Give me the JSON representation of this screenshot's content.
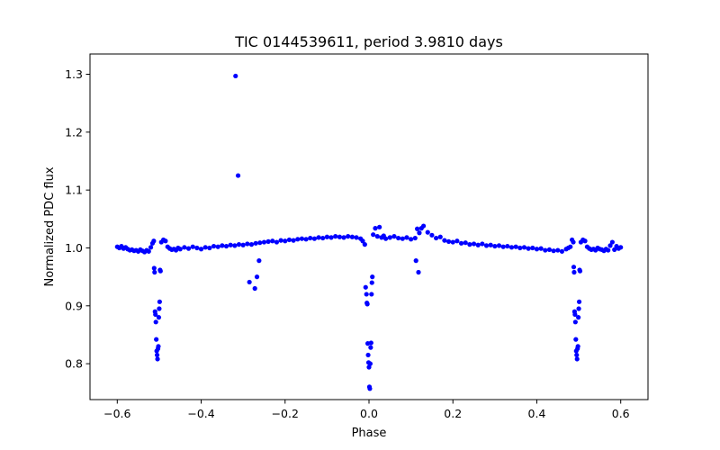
{
  "chart_data": {
    "type": "scatter",
    "title": "TIC 0144539611, period 3.9810 days",
    "xlabel": "Phase",
    "ylabel": "Normalized PDC flux",
    "xlim": [
      -0.665,
      0.665
    ],
    "ylim": [
      0.738,
      1.335
    ],
    "xticks": [
      -0.6,
      -0.4,
      -0.2,
      0.0,
      0.2,
      0.4,
      0.6
    ],
    "xtick_labels": [
      "−0.6",
      "−0.4",
      "−0.2",
      "0.0",
      "0.2",
      "0.4",
      "0.6"
    ],
    "yticks": [
      0.8,
      0.9,
      1.0,
      1.1,
      1.2,
      1.3
    ],
    "ytick_labels": [
      "0.8",
      "0.9",
      "1.0",
      "1.1",
      "1.2",
      "1.3"
    ],
    "grid": false,
    "marker_color": "#0000ff",
    "series": [
      {
        "points": [
          [
            -0.6,
            1.002
          ],
          [
            -0.595,
            1.0
          ],
          [
            -0.59,
            1.003
          ],
          [
            -0.585,
            0.999
          ],
          [
            -0.58,
            1.001
          ],
          [
            -0.575,
            0.998
          ],
          [
            -0.57,
            0.996
          ],
          [
            -0.565,
            0.997
          ],
          [
            -0.56,
            0.995
          ],
          [
            -0.555,
            0.996
          ],
          [
            -0.55,
            0.994
          ],
          [
            -0.545,
            0.997
          ],
          [
            -0.54,
            0.995
          ],
          [
            -0.535,
            0.993
          ],
          [
            -0.53,
            0.996
          ],
          [
            -0.525,
            0.994
          ],
          [
            -0.52,
            1.001
          ],
          [
            -0.516,
            1.008
          ],
          [
            -0.513,
            1.012
          ],
          [
            -0.512,
            0.965
          ],
          [
            -0.511,
            0.958
          ],
          [
            -0.51,
            0.89
          ],
          [
            -0.509,
            0.885
          ],
          [
            -0.508,
            0.872
          ],
          [
            -0.507,
            0.842
          ],
          [
            -0.506,
            0.822
          ],
          [
            -0.505,
            0.815
          ],
          [
            -0.504,
            0.808
          ],
          [
            -0.503,
            0.826
          ],
          [
            -0.502,
            0.83
          ],
          [
            -0.501,
            0.88
          ],
          [
            -0.5,
            0.895
          ],
          [
            -0.499,
            0.907
          ],
          [
            -0.498,
            0.962
          ],
          [
            -0.497,
            0.96
          ],
          [
            -0.495,
            1.01
          ],
          [
            -0.49,
            1.014
          ],
          [
            -0.485,
            1.012
          ],
          [
            -0.48,
            1.002
          ],
          [
            -0.475,
            0.999
          ],
          [
            -0.47,
            0.997
          ],
          [
            -0.465,
            0.998
          ],
          [
            -0.46,
            0.996
          ],
          [
            -0.455,
            1.0
          ],
          [
            -0.45,
            0.998
          ],
          [
            -0.44,
            1.001
          ],
          [
            -0.43,
            0.999
          ],
          [
            -0.42,
            1.002
          ],
          [
            -0.41,
            1.0
          ],
          [
            -0.4,
            0.998
          ],
          [
            -0.39,
            1.001
          ],
          [
            -0.38,
            1.0
          ],
          [
            -0.37,
            1.003
          ],
          [
            -0.36,
            1.002
          ],
          [
            -0.35,
            1.004
          ],
          [
            -0.34,
            1.003
          ],
          [
            -0.33,
            1.005
          ],
          [
            -0.32,
            1.004
          ],
          [
            -0.31,
            1.006
          ],
          [
            -0.3,
            1.005
          ],
          [
            -0.29,
            1.007
          ],
          [
            -0.28,
            1.006
          ],
          [
            -0.27,
            1.008
          ],
          [
            -0.26,
            1.009
          ],
          [
            -0.25,
            1.01
          ],
          [
            -0.24,
            1.011
          ],
          [
            -0.23,
            1.012
          ],
          [
            -0.22,
            1.01
          ],
          [
            -0.21,
            1.013
          ],
          [
            -0.2,
            1.012
          ],
          [
            -0.19,
            1.014
          ],
          [
            -0.18,
            1.013
          ],
          [
            -0.17,
            1.015
          ],
          [
            -0.16,
            1.016
          ],
          [
            -0.15,
            1.015
          ],
          [
            -0.14,
            1.017
          ],
          [
            -0.13,
            1.016
          ],
          [
            -0.12,
            1.018
          ],
          [
            -0.11,
            1.017
          ],
          [
            -0.1,
            1.019
          ],
          [
            -0.09,
            1.018
          ],
          [
            -0.08,
            1.02
          ],
          [
            -0.07,
            1.019
          ],
          [
            -0.06,
            1.018
          ],
          [
            -0.05,
            1.02
          ],
          [
            -0.04,
            1.019
          ],
          [
            -0.03,
            1.018
          ],
          [
            -0.02,
            1.016
          ],
          [
            -0.015,
            1.012
          ],
          [
            -0.01,
            1.006
          ],
          [
            -0.318,
            1.297
          ],
          [
            -0.312,
            1.125
          ],
          [
            -0.285,
            0.941
          ],
          [
            -0.272,
            0.93
          ],
          [
            -0.267,
            0.95
          ],
          [
            -0.262,
            0.978
          ],
          [
            -0.008,
            0.932
          ],
          [
            -0.006,
            0.92
          ],
          [
            -0.005,
            0.905
          ],
          [
            -0.004,
            0.903
          ],
          [
            -0.003,
            0.835
          ],
          [
            -0.002,
            0.815
          ],
          [
            -0.001,
            0.802
          ],
          [
            0.0,
            0.794
          ],
          [
            0.001,
            0.76
          ],
          [
            0.002,
            0.757
          ],
          [
            0.003,
            0.8
          ],
          [
            0.004,
            0.828
          ],
          [
            0.005,
            0.836
          ],
          [
            0.006,
            0.92
          ],
          [
            0.007,
            0.94
          ],
          [
            0.008,
            0.95
          ],
          [
            0.01,
            1.023
          ],
          [
            0.015,
            1.034
          ],
          [
            0.02,
            1.02
          ],
          [
            0.025,
            1.036
          ],
          [
            0.03,
            1.018
          ],
          [
            0.035,
            1.021
          ],
          [
            0.04,
            1.016
          ],
          [
            0.05,
            1.018
          ],
          [
            0.06,
            1.02
          ],
          [
            0.07,
            1.017
          ],
          [
            0.08,
            1.016
          ],
          [
            0.09,
            1.018
          ],
          [
            0.1,
            1.015
          ],
          [
            0.11,
            1.017
          ],
          [
            0.115,
            1.033
          ],
          [
            0.12,
            1.026
          ],
          [
            0.125,
            1.034
          ],
          [
            0.13,
            1.038
          ],
          [
            0.14,
            1.027
          ],
          [
            0.15,
            1.022
          ],
          [
            0.16,
            1.017
          ],
          [
            0.17,
            1.019
          ],
          [
            0.112,
            0.978
          ],
          [
            0.118,
            0.958
          ],
          [
            0.18,
            1.013
          ],
          [
            0.19,
            1.011
          ],
          [
            0.2,
            1.01
          ],
          [
            0.21,
            1.012
          ],
          [
            0.22,
            1.008
          ],
          [
            0.23,
            1.009
          ],
          [
            0.24,
            1.006
          ],
          [
            0.25,
            1.007
          ],
          [
            0.26,
            1.005
          ],
          [
            0.27,
            1.007
          ],
          [
            0.28,
            1.004
          ],
          [
            0.29,
            1.005
          ],
          [
            0.3,
            1.003
          ],
          [
            0.31,
            1.004
          ],
          [
            0.32,
            1.002
          ],
          [
            0.33,
            1.003
          ],
          [
            0.34,
            1.001
          ],
          [
            0.35,
            1.002
          ],
          [
            0.36,
            1.0
          ],
          [
            0.37,
            1.001
          ],
          [
            0.38,
            0.999
          ],
          [
            0.39,
            1.0
          ],
          [
            0.4,
            0.998
          ],
          [
            0.41,
            0.999
          ],
          [
            0.42,
            0.996
          ],
          [
            0.43,
            0.997
          ],
          [
            0.44,
            0.995
          ],
          [
            0.45,
            0.996
          ],
          [
            0.46,
            0.994
          ],
          [
            0.47,
            0.998
          ],
          [
            0.475,
            1.0
          ],
          [
            0.48,
            1.002
          ],
          [
            0.484,
            1.014
          ],
          [
            0.487,
            1.01
          ],
          [
            0.488,
            0.967
          ],
          [
            0.489,
            0.958
          ],
          [
            0.49,
            0.89
          ],
          [
            0.491,
            0.885
          ],
          [
            0.492,
            0.872
          ],
          [
            0.493,
            0.842
          ],
          [
            0.494,
            0.822
          ],
          [
            0.495,
            0.815
          ],
          [
            0.496,
            0.808
          ],
          [
            0.497,
            0.826
          ],
          [
            0.498,
            0.83
          ],
          [
            0.499,
            0.88
          ],
          [
            0.5,
            0.895
          ],
          [
            0.501,
            0.907
          ],
          [
            0.502,
            0.962
          ],
          [
            0.503,
            0.96
          ],
          [
            0.505,
            1.01
          ],
          [
            0.51,
            1.014
          ],
          [
            0.515,
            1.012
          ],
          [
            0.52,
            1.002
          ],
          [
            0.525,
            0.999
          ],
          [
            0.53,
            0.997
          ],
          [
            0.535,
            0.998
          ],
          [
            0.54,
            0.996
          ],
          [
            0.545,
            1.0
          ],
          [
            0.55,
            0.998
          ],
          [
            0.555,
            0.997
          ],
          [
            0.56,
            0.995
          ],
          [
            0.565,
            0.998
          ],
          [
            0.57,
            0.996
          ],
          [
            0.575,
            1.004
          ],
          [
            0.58,
            1.01
          ],
          [
            0.585,
            0.997
          ],
          [
            0.59,
            1.003
          ],
          [
            0.595,
            0.999
          ],
          [
            0.6,
            1.001
          ]
        ]
      }
    ]
  }
}
